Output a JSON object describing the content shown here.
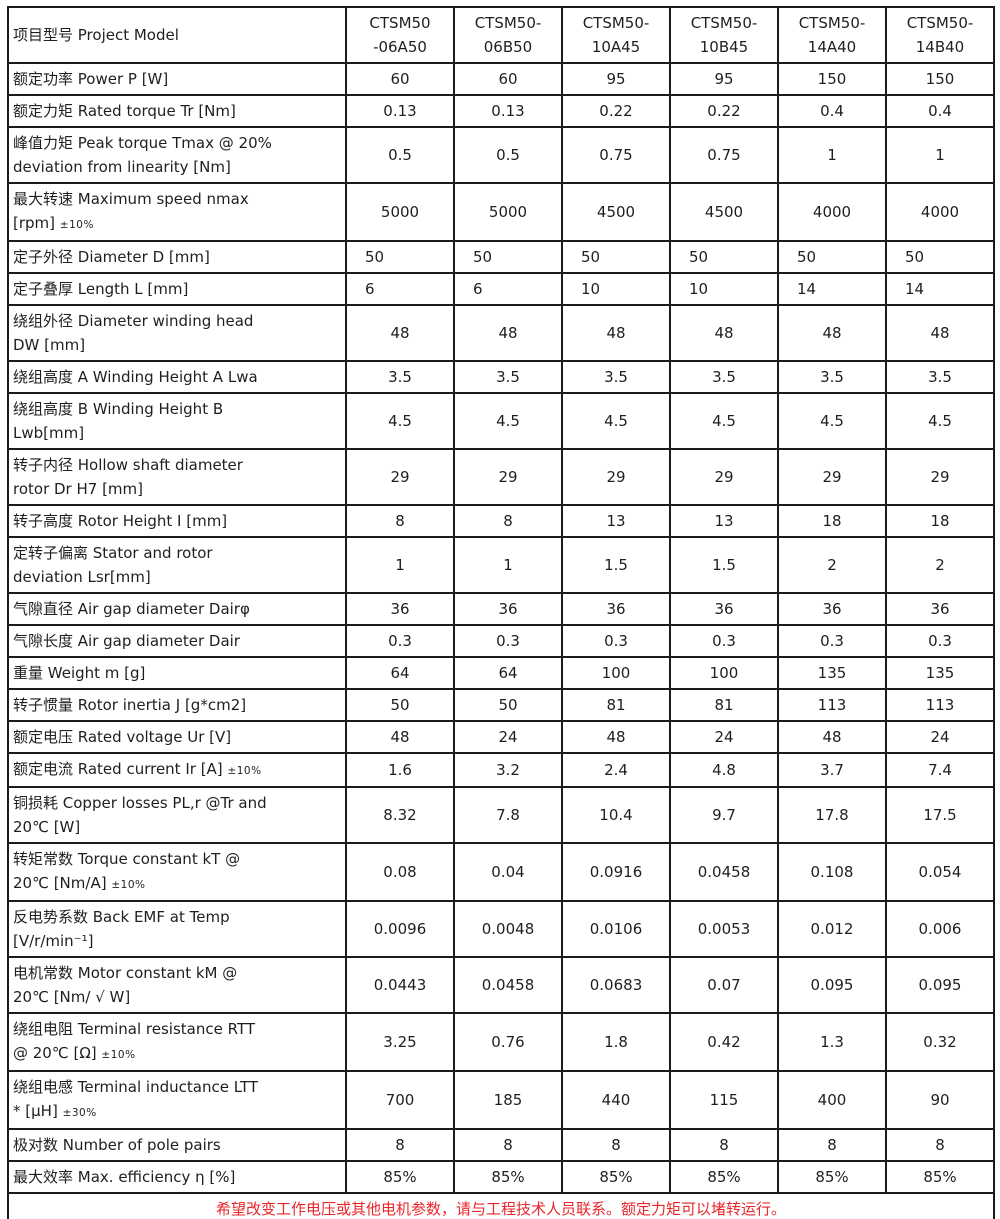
{
  "colors": {
    "border": "#1b1b1b",
    "text": "#1f1f1f",
    "footer_red": "#e8262a",
    "background": "#ffffff"
  },
  "table": {
    "header": {
      "label": "项目型号 Project Model",
      "columns": [
        {
          "line1": "CTSM50",
          "line2": "-06A50"
        },
        {
          "line1": "CTSM50-",
          "line2": "06B50"
        },
        {
          "line1": "CTSM50-",
          "line2": "10A45"
        },
        {
          "line1": "CTSM50-",
          "line2": "10B45"
        },
        {
          "line1": "CTSM50-",
          "line2": "14A40"
        },
        {
          "line1": "CTSM50-",
          "line2": "14B40"
        }
      ]
    },
    "rows": [
      {
        "label": "额定功率 Power P [W]",
        "values": [
          "60",
          "60",
          "95",
          "95",
          "150",
          "150"
        ]
      },
      {
        "label": "额定力矩 Rated torque Tr [Nm]",
        "values": [
          "0.13",
          "0.13",
          "0.22",
          "0.22",
          "0.4",
          "0.4"
        ]
      },
      {
        "label": "峰值力矩 Peak torque Tmax @ 20%\ndeviation from linearity [Nm]",
        "values": [
          "0.5",
          "0.5",
          "0.75",
          "0.75",
          "1",
          "1"
        ]
      },
      {
        "label": "最大转速 Maximum speed nmax\n[rpm]",
        "note": "±10%",
        "values": [
          "5000",
          "5000",
          "4500",
          "4500",
          "4000",
          "4000"
        ]
      },
      {
        "label": "定子外径 Diameter D [mm]",
        "align": "left",
        "values": [
          "50",
          "50",
          "50",
          "50",
          "50",
          "50"
        ]
      },
      {
        "label": "定子叠厚 Length L [mm]",
        "align": "left",
        "values": [
          "6",
          "6",
          "10",
          "10",
          "14",
          "14"
        ]
      },
      {
        "label": "绕组外径 Diameter winding head\nDW [mm]",
        "values": [
          "48",
          "48",
          "48",
          "48",
          "48",
          "48"
        ]
      },
      {
        "label": "绕组高度 A Winding Height A Lwa",
        "values": [
          "3.5",
          "3.5",
          "3.5",
          "3.5",
          "3.5",
          "3.5"
        ]
      },
      {
        "label": "绕组高度 B Winding Height B\nLwb[mm]",
        "values": [
          "4.5",
          "4.5",
          "4.5",
          "4.5",
          "4.5",
          "4.5"
        ]
      },
      {
        "label": "转子内径 Hollow shaft diameter\nrotor Dr H7 [mm]",
        "values": [
          "29",
          "29",
          "29",
          "29",
          "29",
          "29"
        ]
      },
      {
        "label": "转子高度 Rotor Height I [mm]",
        "values": [
          "8",
          "8",
          "13",
          "13",
          "18",
          "18"
        ]
      },
      {
        "label": "定转子偏离 Stator and rotor\ndeviation Lsr[mm]",
        "values": [
          "1",
          "1",
          "1.5",
          "1.5",
          "2",
          "2"
        ]
      },
      {
        "label": "气隙直径 Air gap diameter Dairφ",
        "values": [
          "36",
          "36",
          "36",
          "36",
          "36",
          "36"
        ]
      },
      {
        "label": "气隙长度 Air gap diameter Dair",
        "values": [
          "0.3",
          "0.3",
          "0.3",
          "0.3",
          "0.3",
          "0.3"
        ]
      },
      {
        "label": "重量 Weight m [g]",
        "values": [
          "64",
          "64",
          "100",
          "100",
          "135",
          "135"
        ]
      },
      {
        "label": "转子惯量 Rotor inertia J [g*cm2]",
        "values": [
          "50",
          "50",
          "81",
          "81",
          "113",
          "113"
        ]
      },
      {
        "label": "额定电压 Rated voltage Ur [V]",
        "values": [
          "48",
          "24",
          "48",
          "24",
          "48",
          "24"
        ]
      },
      {
        "label": "额定电流 Rated current Ir [A]",
        "note": "±10%",
        "values": [
          "1.6",
          "3.2",
          "2.4",
          "4.8",
          "3.7",
          "7.4"
        ]
      },
      {
        "label": "铜损耗 Copper losses PL,r @Tr and\n20℃ [W]",
        "values": [
          "8.32",
          "7.8",
          "10.4",
          "9.7",
          "17.8",
          "17.5"
        ]
      },
      {
        "label": "转矩常数 Torque constant kT @\n20℃ [Nm/A]",
        "note": "±10%",
        "values": [
          "0.08",
          "0.04",
          "0.0916",
          "0.0458",
          "0.108",
          "0.054"
        ]
      },
      {
        "label": "反电势系数 Back EMF at Temp\n[V/r/min⁻¹]",
        "values": [
          "0.0096",
          "0.0048",
          "0.0106",
          "0.0053",
          "0.012",
          "0.006"
        ]
      },
      {
        "label": "电机常数 Motor constant kM @\n20℃ [Nm/ √ W]",
        "values": [
          "0.0443",
          "0.0458",
          "0.0683",
          "0.07",
          "0.095",
          "0.095"
        ]
      },
      {
        "label": "绕组电阻 Terminal resistance RTT\n@ 20℃ [Ω]",
        "note": "±10%",
        "values": [
          "3.25",
          "0.76",
          "1.8",
          "0.42",
          "1.3",
          "0.32"
        ]
      },
      {
        "label": "绕组电感 Terminal inductance LTT\n* [μH]",
        "note": "±30%",
        "values": [
          "700",
          "185",
          "440",
          "115",
          "400",
          "90"
        ]
      },
      {
        "label": "极对数 Number of pole pairs",
        "values": [
          "8",
          "8",
          "8",
          "8",
          "8",
          "8"
        ]
      },
      {
        "label": "最大效率 Max. efficiency η [%]",
        "values": [
          "85%",
          "85%",
          "85%",
          "85%",
          "85%",
          "85%"
        ]
      }
    ],
    "footer": "希望改变工作电压或其他电机参数，请与工程技术人员联系。额定力矩可以堵转运行。"
  }
}
